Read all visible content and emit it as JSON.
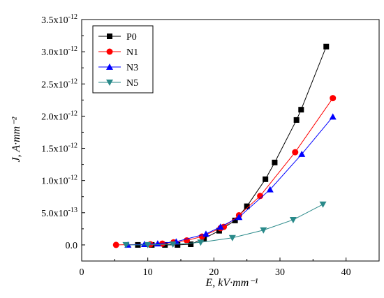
{
  "chart_data": {
    "type": "line",
    "xlabel": "E, kV·mm⁻¹",
    "ylabel": "J, A·mm⁻²",
    "xlim": [
      0,
      45
    ],
    "ylim": [
      -2.5e-13,
      3.5e-12
    ],
    "x_ticks": [
      0,
      10,
      20,
      30,
      40
    ],
    "x_tick_labels": [
      "0",
      "10",
      "20",
      "30",
      "40"
    ],
    "y_ticks": [
      0,
      5e-13,
      1e-12,
      1.5e-12,
      2e-12,
      2.5e-12,
      3e-12,
      3.5e-12
    ],
    "y_tick_labels": [
      {
        "base": "0.0",
        "exp": ""
      },
      {
        "base": "5.0x10",
        "exp": "-13"
      },
      {
        "base": "1.0x10",
        "exp": "-12"
      },
      {
        "base": "1.5x10",
        "exp": "-12"
      },
      {
        "base": "2.0x10",
        "exp": "-12"
      },
      {
        "base": "2.5x10",
        "exp": "-12"
      },
      {
        "base": "3.0x10",
        "exp": "-12"
      },
      {
        "base": "3.5x10",
        "exp": "-12"
      }
    ],
    "grid": false,
    "legend_position": "top-left",
    "series": [
      {
        "name": "P0",
        "color": "#000000",
        "marker": "square",
        "x": [
          8.5,
          10.6,
          12.6,
          14.5,
          16.5,
          18.5,
          20.8,
          23.2,
          25.0,
          27.8,
          29.2,
          32.5,
          33.2,
          37.0
        ],
        "y": [
          0,
          0,
          0,
          0,
          1e-14,
          1e-13,
          2.2e-13,
          3.8e-13,
          6e-13,
          1.02e-12,
          1.28e-12,
          1.94e-12,
          2.1e-12,
          3.08e-12
        ]
      },
      {
        "name": "N1",
        "color": "#ff0000",
        "marker": "circle",
        "x": [
          5.2,
          10.4,
          12.2,
          13.9,
          15.9,
          18.2,
          21.0,
          21.5,
          23.8,
          27.0,
          32.3,
          38.0
        ],
        "y": [
          0,
          1e-14,
          2e-14,
          4e-14,
          7e-14,
          1.3e-13,
          2.6e-13,
          2.8e-13,
          4.6e-13,
          7.6e-13,
          1.44e-12,
          2.28e-12
        ]
      },
      {
        "name": "N3",
        "color": "#0000ff",
        "marker": "triangle-up",
        "x": [
          7.0,
          9.5,
          11.5,
          14.3,
          18.8,
          21.0,
          23.8,
          28.5,
          33.3,
          38.0
        ],
        "y": [
          0,
          1e-14,
          2e-14,
          5e-14,
          1.7e-13,
          2.8e-13,
          4.3e-13,
          8.6e-13,
          1.41e-12,
          1.99e-12
        ]
      },
      {
        "name": "N5",
        "color": "#2a8a8a",
        "marker": "triangle-down",
        "x": [
          6.7,
          10.0,
          13.8,
          18.0,
          22.8,
          27.5,
          32.0,
          36.5
        ],
        "y": [
          0,
          0,
          1e-14,
          4e-14,
          1.1e-13,
          2.3e-13,
          3.9e-13,
          6.3e-13
        ]
      }
    ]
  }
}
